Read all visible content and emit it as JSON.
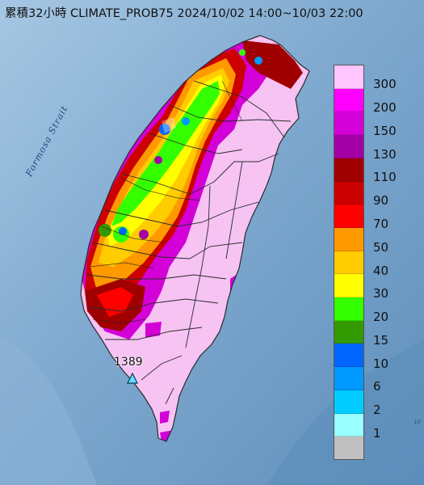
{
  "title": "累積32小時 CLIMATE_PROB75 2024/10/02 14:00~10/03 22:00",
  "sea_label": "Formosa Strait",
  "station": {
    "label": "1389",
    "marker": "triangle-marker"
  },
  "edge_mark": "10",
  "legend": {
    "labels": [
      "300",
      "200",
      "150",
      "130",
      "110",
      "90",
      "70",
      "50",
      "40",
      "30",
      "20",
      "15",
      "10",
      "6",
      "2",
      "1"
    ],
    "colors": [
      "#ffc6ff",
      "#ff00ff",
      "#d400d8",
      "#a300a5",
      "#a00000",
      "#cc0000",
      "#ff0000",
      "#ff9900",
      "#ffcc00",
      "#ffff00",
      "#33ff00",
      "#339900",
      "#0066ff",
      "#0099ff",
      "#00ccff",
      "#99ffff",
      "#c0c0c0"
    ]
  },
  "colors": {
    "sea": "#6f9cc4",
    "base_precip": "#f6c3f3",
    "boundary": "#2b2b2b"
  }
}
